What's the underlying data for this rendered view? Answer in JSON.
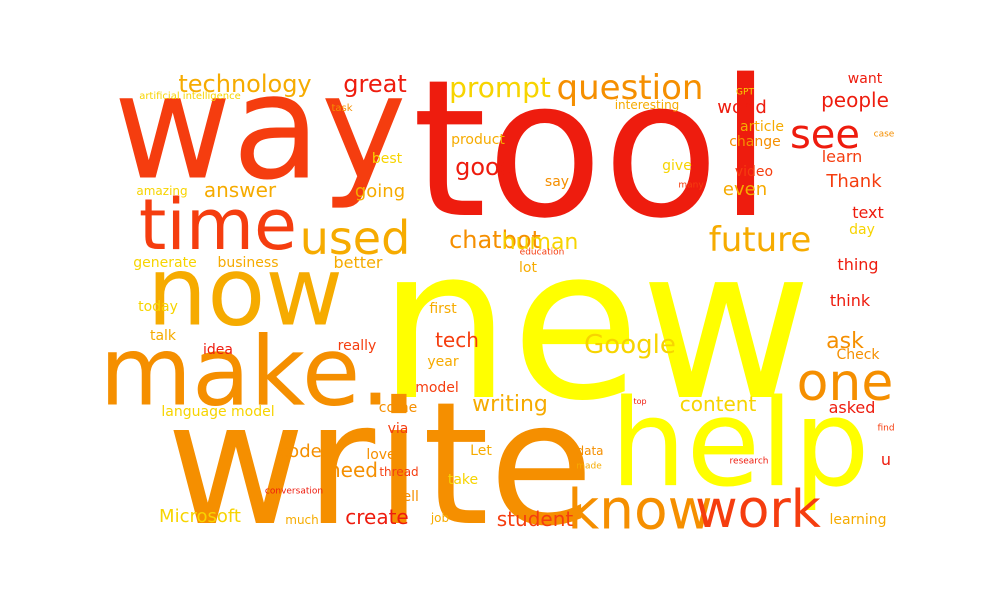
{
  "colors": {
    "red": "#ee1c0e",
    "red_orange": "#f53d0f",
    "orange": "#f58f00",
    "amber": "#f6ab00",
    "yellow": "#f7d400",
    "bright_yellow": "#ffff00"
  },
  "words": [
    {
      "text": "new",
      "color": "bright_yellow"
    },
    {
      "text": "tool",
      "color": "red"
    },
    {
      "text": "write",
      "color": "orange"
    },
    {
      "text": "way",
      "color": "red_orange"
    },
    {
      "text": "help",
      "color": "bright_yellow"
    },
    {
      "text": "make.",
      "color": "orange"
    },
    {
      "text": "now",
      "color": "amber"
    },
    {
      "text": "time",
      "color": "red_orange"
    },
    {
      "text": "know",
      "color": "orange"
    },
    {
      "text": "work",
      "color": "red_orange"
    },
    {
      "text": "one",
      "color": "orange"
    },
    {
      "text": "used",
      "color": "amber"
    },
    {
      "text": "question",
      "color": "orange"
    },
    {
      "text": "future",
      "color": "amber"
    },
    {
      "text": "Google",
      "color": "yellow"
    },
    {
      "text": "see",
      "color": "red"
    },
    {
      "text": "prompt",
      "color": "yellow"
    },
    {
      "text": "technology",
      "color": "amber"
    },
    {
      "text": "great",
      "color": "red"
    },
    {
      "text": "chatbot",
      "color": "orange"
    },
    {
      "text": "good",
      "color": "red"
    },
    {
      "text": "human",
      "color": "yellow"
    },
    {
      "text": "writing",
      "color": "amber"
    },
    {
      "text": "content",
      "color": "yellow"
    },
    {
      "text": "people",
      "color": "red"
    },
    {
      "text": "answer",
      "color": "amber"
    },
    {
      "text": "create",
      "color": "red"
    },
    {
      "text": "student",
      "color": "red_orange"
    },
    {
      "text": "Microsoft",
      "color": "yellow"
    },
    {
      "text": "need",
      "color": "orange"
    },
    {
      "text": "code",
      "color": "orange"
    },
    {
      "text": "ask",
      "color": "orange"
    },
    {
      "text": "tech",
      "color": "red_orange"
    },
    {
      "text": "Thank",
      "color": "red_orange"
    },
    {
      "text": "world",
      "color": "red"
    },
    {
      "text": "even",
      "color": "amber"
    },
    {
      "text": "text",
      "color": "red"
    },
    {
      "text": "asked",
      "color": "red"
    },
    {
      "text": "going",
      "color": "amber"
    },
    {
      "text": "thing",
      "color": "red"
    },
    {
      "text": "think",
      "color": "red"
    },
    {
      "text": "learn",
      "color": "red_orange"
    },
    {
      "text": "better",
      "color": "amber"
    },
    {
      "text": "u",
      "color": "red"
    },
    {
      "text": "business",
      "color": "amber"
    },
    {
      "text": "generate",
      "color": "yellow"
    },
    {
      "text": "today",
      "color": "yellow"
    },
    {
      "text": "talk",
      "color": "amber"
    },
    {
      "text": "Check",
      "color": "orange"
    },
    {
      "text": "learning",
      "color": "amber"
    },
    {
      "text": "give",
      "color": "yellow"
    },
    {
      "text": "say",
      "color": "orange"
    },
    {
      "text": "video",
      "color": "red_orange"
    },
    {
      "text": "change",
      "color": "orange"
    },
    {
      "text": "article",
      "color": "amber"
    },
    {
      "text": "product",
      "color": "amber"
    },
    {
      "text": "best",
      "color": "yellow"
    },
    {
      "text": "year",
      "color": "amber"
    },
    {
      "text": "model",
      "color": "red_orange"
    },
    {
      "text": "first",
      "color": "amber"
    },
    {
      "text": "really",
      "color": "red_orange"
    },
    {
      "text": "idea",
      "color": "red"
    },
    {
      "text": "language model",
      "color": "yellow"
    },
    {
      "text": "love",
      "color": "orange"
    },
    {
      "text": "Let",
      "color": "amber"
    },
    {
      "text": "data",
      "color": "orange"
    },
    {
      "text": "take",
      "color": "yellow"
    },
    {
      "text": "thread",
      "color": "red_orange"
    },
    {
      "text": "well",
      "color": "orange"
    },
    {
      "text": "come",
      "color": "orange"
    },
    {
      "text": "via",
      "color": "red_orange"
    },
    {
      "text": "much",
      "color": "amber"
    },
    {
      "text": "job",
      "color": "amber"
    },
    {
      "text": "lot",
      "color": "amber"
    },
    {
      "text": "day",
      "color": "yellow"
    },
    {
      "text": "want",
      "color": "red"
    },
    {
      "text": "amazing",
      "color": "yellow"
    },
    {
      "text": "interesting",
      "color": "amber"
    },
    {
      "text": "task",
      "color": "orange"
    },
    {
      "text": "artificial intelligence",
      "color": "yellow"
    },
    {
      "text": "GPT",
      "color": "yellow"
    },
    {
      "text": "case",
      "color": "orange"
    },
    {
      "text": "many",
      "color": "red_orange"
    },
    {
      "text": "education",
      "color": "red_orange"
    },
    {
      "text": "conversation",
      "color": "red"
    },
    {
      "text": "research",
      "color": "red"
    },
    {
      "text": "made",
      "color": "amber"
    },
    {
      "text": "top",
      "color": "red"
    },
    {
      "text": "find",
      "color": "red_orange"
    }
  ]
}
